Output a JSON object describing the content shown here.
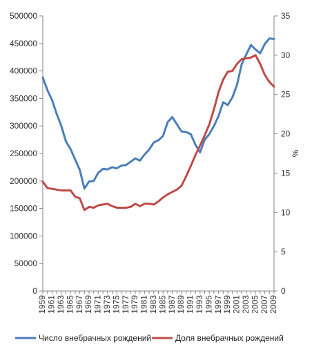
{
  "chart_data": {
    "type": "line",
    "x": [
      1959,
      1960,
      1961,
      1962,
      1963,
      1964,
      1965,
      1966,
      1967,
      1968,
      1969,
      1970,
      1971,
      1972,
      1973,
      1974,
      1975,
      1976,
      1977,
      1978,
      1979,
      1980,
      1981,
      1982,
      1983,
      1984,
      1985,
      1986,
      1987,
      1988,
      1989,
      1990,
      1991,
      1992,
      1993,
      1994,
      1995,
      1996,
      1997,
      1998,
      1999,
      2000,
      2001,
      2002,
      2003,
      2004,
      2005,
      2006,
      2007,
      2008,
      2009
    ],
    "x_tick_labels": [
      "1959",
      "1961",
      "1963",
      "1965",
      "1967",
      "1969",
      "1971",
      "1973",
      "1975",
      "1977",
      "1979",
      "1981",
      "1983",
      "1985",
      "1987",
      "1989",
      "1991",
      "1993",
      "1995",
      "1997",
      "1999",
      "2001",
      "2003",
      "2005",
      "2007",
      "2009"
    ],
    "y_left_ticks": [
      "0",
      "50000",
      "100000",
      "150000",
      "200000",
      "250000",
      "300000",
      "350000",
      "400000",
      "450000",
      "500000"
    ],
    "y_right_ticks": [
      "0",
      "5",
      "10",
      "15",
      "20",
      "25",
      "30",
      "35"
    ],
    "ylim_left": [
      0,
      500000
    ],
    "ylim_right": [
      0,
      35
    ],
    "ylabel_right": "%",
    "legend_position": "bottom",
    "grid": false,
    "series": [
      {
        "name": "Число внебрачных рождений",
        "axis": "left",
        "color": "#4a7ebb",
        "values": [
          388000,
          365000,
          347000,
          322000,
          300000,
          272000,
          258000,
          239000,
          220000,
          186000,
          199000,
          200000,
          215000,
          222000,
          221000,
          225000,
          223000,
          228000,
          229000,
          235000,
          241000,
          237000,
          248000,
          257000,
          270000,
          274000,
          282000,
          307000,
          316000,
          303000,
          290000,
          289000,
          285000,
          266000,
          252000,
          275000,
          285000,
          300000,
          318000,
          343000,
          338000,
          352000,
          375000,
          412000,
          430000,
          447000,
          439000,
          432000,
          449000,
          459000,
          458000
        ]
      },
      {
        "name": "Доля внебрачных рождений",
        "axis": "right",
        "color": "#be4b48",
        "values": [
          13.9,
          13.1,
          13.0,
          12.9,
          12.8,
          12.8,
          12.8,
          12.0,
          11.8,
          10.3,
          10.7,
          10.6,
          10.9,
          11.0,
          11.1,
          10.8,
          10.6,
          10.6,
          10.6,
          10.7,
          11.1,
          10.8,
          11.1,
          11.1,
          11.0,
          11.4,
          11.9,
          12.3,
          12.6,
          12.9,
          13.4,
          14.6,
          15.9,
          17.3,
          18.5,
          19.8,
          21.2,
          23.1,
          25.3,
          26.9,
          27.9,
          28.0,
          28.9,
          29.5,
          29.6,
          29.7,
          30.0,
          28.9,
          27.5,
          26.6,
          26.0
        ]
      }
    ]
  }
}
